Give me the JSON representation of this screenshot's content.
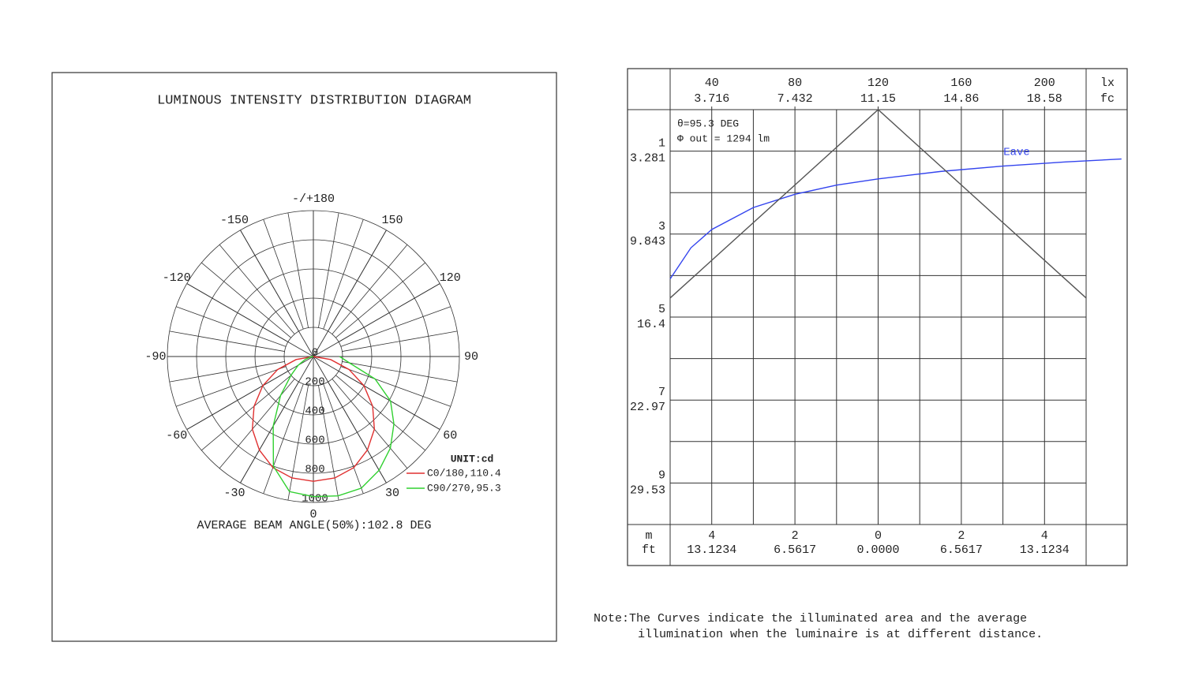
{
  "chart_data": [
    {
      "type": "polar",
      "title": "LUMINOUS INTENSITY DISTRIBUTION DIAGRAM",
      "unit": "UNIT:cd",
      "annotation": "AVERAGE BEAM ANGLE(50%):102.8 DEG",
      "angle_ticks": [
        0,
        30,
        60,
        90,
        120,
        150,
        {
          "value": 180,
          "label": "-/+180"
        },
        -150,
        -120,
        -90,
        -60,
        -30
      ],
      "rlim": [
        0,
        1000
      ],
      "rticks": [
        0,
        200,
        400,
        600,
        800,
        1000
      ],
      "x": [
        -90,
        -80,
        -70,
        -60,
        -50,
        -40,
        -30,
        -20,
        -10,
        0,
        10,
        20,
        30,
        40,
        50,
        60,
        70,
        80,
        90
      ],
      "series": [
        {
          "name": "C0/180,110.4",
          "color": "#e03030",
          "values": [
            0,
            120,
            260,
            400,
            530,
            650,
            740,
            810,
            845,
            855,
            845,
            810,
            740,
            650,
            530,
            400,
            260,
            120,
            0
          ]
        },
        {
          "name": "C90/270,95.3",
          "color": "#30d030",
          "values": [
            0,
            20,
            60,
            120,
            200,
            350,
            550,
            800,
            940,
            960,
            970,
            960,
            900,
            820,
            720,
            610,
            450,
            250,
            180
          ]
        }
      ]
    },
    {
      "type": "illuminance-cone",
      "annotations": [
        "θ=95.3 DEG",
        "Φ out = 1294 lm"
      ],
      "note": [
        "Note:The Curves indicate the illuminated area and the average",
        "illumination when the luminaire is at different distance."
      ],
      "x2labels": [
        "lx",
        "fc"
      ],
      "xlabels": [
        "m",
        "ft"
      ],
      "x2lim": [
        20,
        220
      ],
      "x2ticks": [
        40,
        80,
        120,
        160,
        200
      ],
      "x2ticks_fc": [
        3.716,
        7.432,
        11.15,
        14.86,
        18.58
      ],
      "xlim": [
        -5,
        5
      ],
      "xticks": [
        {
          "value": -4,
          "label": "4"
        },
        {
          "value": -2,
          "label": "2"
        },
        0,
        2,
        4
      ],
      "xticks_ft": [
        13.1234,
        6.5617,
        {
          "value": 0,
          "label": "0.0000"
        },
        6.5617,
        13.1234
      ],
      "ylim": [
        0,
        10
      ],
      "yticks": [
        1,
        3,
        5,
        7,
        9
      ],
      "yticks_ft": [
        3.281,
        9.843,
        16.4,
        22.97,
        29.53
      ],
      "series": [
        {
          "name": "Eave",
          "color": "#3344ee",
          "axis": "x2",
          "x": [
            20,
            30,
            40,
            60,
            80,
            100,
            120,
            150,
            180,
            210,
            237
          ],
          "values": [
            4.08,
            3.33,
            2.89,
            2.36,
            2.04,
            1.82,
            1.67,
            1.49,
            1.36,
            1.26,
            1.19
          ]
        },
        {
          "color": "#555555",
          "x": [
            -5,
            0,
            5
          ],
          "values": [
            4.54,
            0,
            4.54
          ]
        }
      ]
    }
  ]
}
